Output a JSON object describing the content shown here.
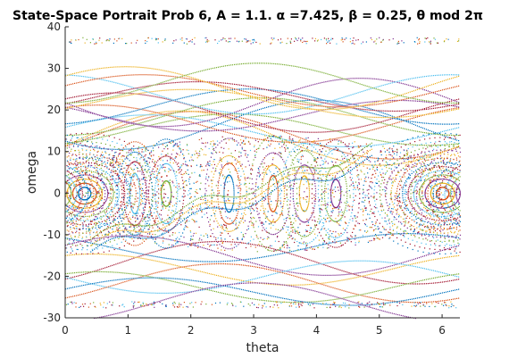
{
  "chart_data": {
    "type": "scatter",
    "title": "State-Space Portrait Prob 6, A = 1.1. α =7.425, β = 0.25, θ mod 2π",
    "xlabel": "theta",
    "ylabel": "omega",
    "xlim": [
      0,
      6.2832
    ],
    "ylim": [
      -30,
      40
    ],
    "x_ticks": [
      0,
      1,
      2,
      3,
      4,
      5,
      6
    ],
    "y_ticks": [
      -30,
      -20,
      -10,
      0,
      10,
      20,
      30,
      40
    ],
    "grid": false,
    "series_colors": [
      "#0072bd",
      "#d95319",
      "#edb120",
      "#7e2f8e",
      "#77ac30",
      "#4dbeee",
      "#a2142f"
    ],
    "point_count_estimate": 12000,
    "description_features": {
      "centers_of_rotation": [
        [
          0.3,
          0
        ],
        [
          6.0,
          0
        ]
      ],
      "separatrix_region_y": [
        -15,
        15
      ]
    }
  }
}
